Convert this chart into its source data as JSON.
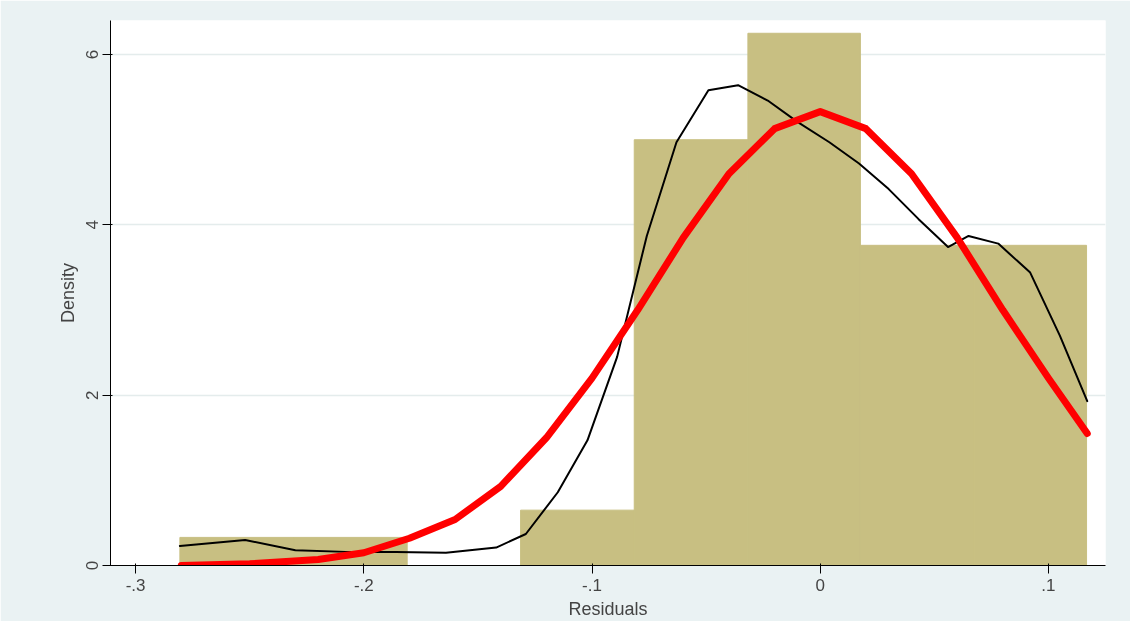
{
  "chart_data": {
    "type": "histogram",
    "xlabel": "Residuals",
    "ylabel": "Density",
    "bins": [
      -0.2806,
      -0.2308,
      -0.181,
      -0.1313,
      -0.0815,
      -0.0317,
      0.0176,
      0.0674,
      0.1167
    ],
    "values": [
      0.33,
      0.33,
      0,
      0.65,
      5.0,
      6.25,
      3.76,
      3.76
    ],
    "color": "#c8bf82",
    "xlim": [
      -0.311,
      0.125
    ],
    "ylim": [
      0,
      6.4
    ],
    "xticks": [
      {
        "value": -0.3,
        "label": "-.3"
      },
      {
        "value": -0.2,
        "label": "-.2"
      },
      {
        "value": -0.1,
        "label": "-.1"
      },
      0,
      {
        "value": 0.1,
        "label": ".1"
      }
    ],
    "yticks": [
      0,
      2,
      4,
      6
    ],
    "grid": "y",
    "series": [
      {
        "type": "line",
        "color": "#000000",
        "x": [
          -0.2806,
          -0.252,
          -0.23,
          -0.208,
          -0.186,
          -0.164,
          -0.142,
          -0.129,
          -0.115,
          -0.102,
          -0.089,
          -0.076,
          -0.063,
          -0.049,
          -0.036,
          -0.023,
          -0.01,
          0.004,
          0.017,
          0.03,
          0.043,
          0.056,
          0.065,
          0.078,
          0.092,
          0.105,
          0.117
        ],
        "values": [
          0.23,
          0.3,
          0.18,
          0.16,
          0.16,
          0.15,
          0.21,
          0.37,
          0.86,
          1.47,
          2.45,
          3.87,
          4.97,
          5.58,
          5.64,
          5.46,
          5.21,
          4.97,
          4.72,
          4.42,
          4.07,
          3.74,
          3.87,
          3.78,
          3.44,
          2.7,
          1.93
        ]
      },
      {
        "type": "line",
        "color": "#ff0000",
        "x": [
          -0.28,
          -0.25,
          -0.22,
          -0.2,
          -0.18,
          -0.16,
          -0.14,
          -0.12,
          -0.1,
          -0.08,
          -0.06,
          -0.04,
          -0.02,
          0,
          0.02,
          0.04,
          0.06,
          0.08,
          0.1,
          0.117
        ],
        "values": [
          0.0,
          0.02,
          0.07,
          0.15,
          0.32,
          0.54,
          0.93,
          1.5,
          2.2,
          3.0,
          3.85,
          4.6,
          5.13,
          5.33,
          5.13,
          4.6,
          3.85,
          3.0,
          2.2,
          1.55
        ]
      }
    ]
  }
}
